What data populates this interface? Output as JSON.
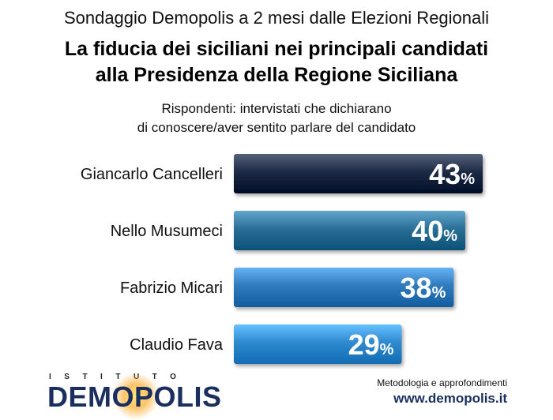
{
  "header": {
    "supertitle": "Sondaggio Demopolis a 2 mesi dalle Elezioni Regionali",
    "title_line1": "La fiducia dei siciliani nei principali candidati",
    "title_line2": "alla Presidenza della Regione Siciliana",
    "subtitle_line1": "Rispondenti: intervistati che dichiarano",
    "subtitle_line2": "di conoscere/aver sentito parlare del candidato"
  },
  "chart_data": {
    "type": "bar",
    "orientation": "horizontal",
    "categories": [
      "Giancarlo Cancelleri",
      "Nello Musumeci",
      "Fabrizio Micari",
      "Claudio Fava"
    ],
    "values": [
      43,
      40,
      38,
      29
    ],
    "value_suffix": "%",
    "colors": [
      "#1e2b45",
      "#2a6f95",
      "#2f7bbd",
      "#2f8ad0"
    ],
    "xlim": [
      0,
      43
    ]
  },
  "footer": {
    "logo_small": "ISTITUTO",
    "logo_main": "DEMOPOLIS",
    "methodology_label": "Metodologia e approfondimenti",
    "url": "www.demopolis.it"
  }
}
